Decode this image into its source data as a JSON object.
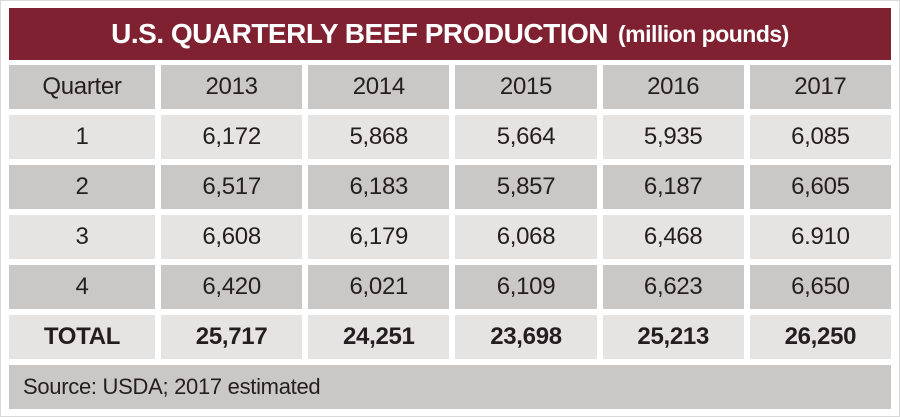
{
  "colors": {
    "accent": "#7F2130",
    "row_light": "#E5E4E3",
    "row_dark": "#C9C8C7",
    "text": "#231F20",
    "title_text": "#FFFFFF"
  },
  "header": {
    "title_main": "U.S. QUARTERLY BEEF PRODUCTION",
    "title_unit": "(million pounds)"
  },
  "table": {
    "columns": [
      "Quarter",
      "2013",
      "2014",
      "2015",
      "2016",
      "2017"
    ],
    "rows": [
      {
        "label": "1",
        "values": [
          "6,172",
          "5,868",
          "5,664",
          "5,935",
          "6,085"
        ]
      },
      {
        "label": "2",
        "values": [
          "6,517",
          "6,183",
          "5,857",
          "6,187",
          "6,605"
        ]
      },
      {
        "label": "3",
        "values": [
          "6,608",
          "6,179",
          "6,068",
          "6,468",
          "6.910"
        ]
      },
      {
        "label": "4",
        "values": [
          "6,420",
          "6,021",
          "6,109",
          "6,623",
          "6,650"
        ]
      }
    ],
    "total": {
      "label": "TOTAL",
      "values": [
        "25,717",
        "24,251",
        "23,698",
        "25,213",
        "26,250"
      ]
    }
  },
  "footer": {
    "source": "Source: USDA; 2017 estimated"
  },
  "chart_data": {
    "type": "table",
    "title": "U.S. Quarterly Beef Production (million pounds)",
    "columns": [
      "Quarter",
      "2013",
      "2014",
      "2015",
      "2016",
      "2017"
    ],
    "rows": [
      [
        "1",
        6172,
        5868,
        5664,
        5935,
        6085
      ],
      [
        "2",
        6517,
        6183,
        5857,
        6187,
        6605
      ],
      [
        "3",
        6608,
        6179,
        6068,
        6468,
        6910
      ],
      [
        "4",
        6420,
        6021,
        6109,
        6623,
        6650
      ],
      [
        "TOTAL",
        25717,
        24251,
        23698,
        25213,
        26250
      ]
    ],
    "note": "Source: USDA; 2017 estimated"
  }
}
